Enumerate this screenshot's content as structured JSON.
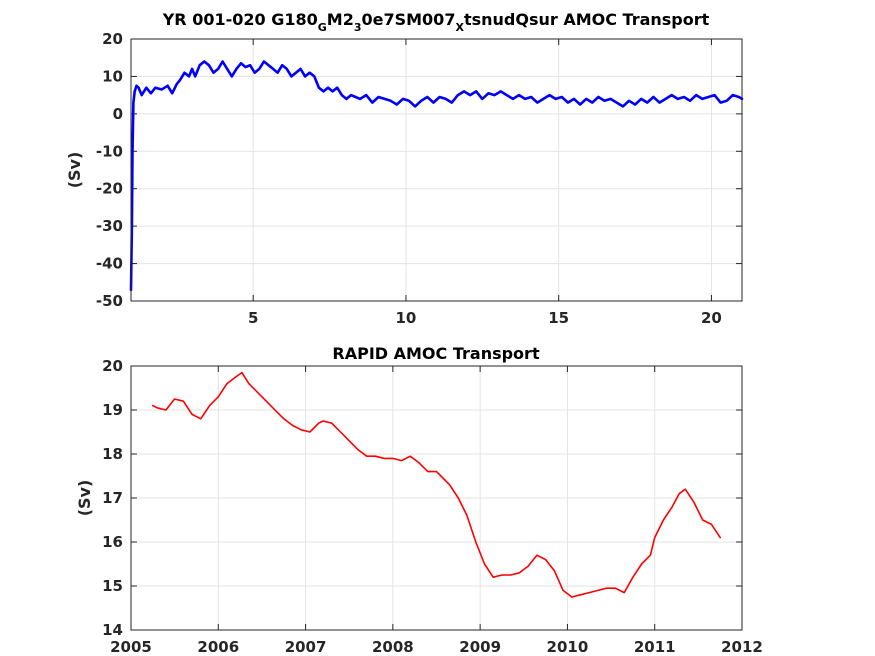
{
  "chart_data": [
    {
      "type": "line",
      "title_parts": [
        "YR 001-020 G180",
        "G",
        "M2",
        "3",
        "0e7SM007",
        "X",
        "tsnudQsur AMOC Transport"
      ],
      "ylabel": "(Sv)",
      "xlabel": "",
      "xlim": [
        1,
        21
      ],
      "ylim": [
        -50,
        20
      ],
      "xticks": [
        5,
        10,
        15,
        20
      ],
      "yticks": [
        20,
        10,
        0,
        -10,
        -20,
        -30,
        -40,
        -50
      ],
      "grid": true,
      "series": [
        {
          "color": "#0000ff",
          "x": [
            1.0,
            1.03,
            1.05,
            1.08,
            1.12,
            1.18,
            1.25,
            1.35,
            1.5,
            1.65,
            1.8,
            2.0,
            2.2,
            2.35,
            2.5,
            2.6,
            2.75,
            2.9,
            3.0,
            3.1,
            3.25,
            3.4,
            3.55,
            3.7,
            3.85,
            4.0,
            4.15,
            4.3,
            4.45,
            4.6,
            4.75,
            4.9,
            5.05,
            5.2,
            5.35,
            5.5,
            5.65,
            5.8,
            5.95,
            6.1,
            6.25,
            6.4,
            6.55,
            6.7,
            6.85,
            7.0,
            7.15,
            7.3,
            7.45,
            7.6,
            7.75,
            7.9,
            8.05,
            8.2,
            8.35,
            8.5,
            8.7,
            8.9,
            9.1,
            9.3,
            9.5,
            9.7,
            9.9,
            10.1,
            10.3,
            10.5,
            10.7,
            10.9,
            11.1,
            11.3,
            11.5,
            11.7,
            11.9,
            12.1,
            12.3,
            12.5,
            12.7,
            12.9,
            13.1,
            13.3,
            13.5,
            13.7,
            13.9,
            14.1,
            14.3,
            14.5,
            14.7,
            14.9,
            15.1,
            15.3,
            15.5,
            15.7,
            15.9,
            16.1,
            16.3,
            16.5,
            16.7,
            16.9,
            17.1,
            17.3,
            17.5,
            17.7,
            17.9,
            18.1,
            18.3,
            18.5,
            18.7,
            18.9,
            19.1,
            19.3,
            19.5,
            19.7,
            19.9,
            20.1,
            20.3,
            20.5,
            20.7,
            20.9,
            21.0
          ],
          "y": [
            -47,
            -30,
            -10,
            3,
            6,
            7.5,
            7,
            5,
            7,
            5.5,
            7,
            6.5,
            7.5,
            5.5,
            8,
            9,
            11,
            10,
            12,
            10,
            13,
            14,
            13,
            11,
            12,
            14,
            12,
            10,
            12,
            13.5,
            12.5,
            13,
            11,
            12,
            14,
            13,
            12,
            11,
            13,
            12,
            10,
            11,
            12,
            10,
            11,
            10,
            7,
            6,
            7,
            6,
            7,
            5,
            4,
            5,
            4.5,
            4,
            5,
            3,
            4.5,
            4,
            3.5,
            2.5,
            4,
            3.5,
            2,
            3.5,
            4.5,
            3,
            4.5,
            4,
            3,
            5,
            6,
            5,
            6,
            4,
            5.5,
            5,
            6,
            5,
            4,
            5,
            4,
            4.5,
            3,
            4,
            5,
            4,
            4.5,
            3,
            4,
            2.5,
            4,
            3,
            4.5,
            3.5,
            4,
            3,
            2,
            3.5,
            2.5,
            4,
            3,
            4.5,
            3,
            4,
            5,
            4,
            4.5,
            3.5,
            5,
            4,
            4.5,
            5,
            3,
            3.5,
            5,
            4.5,
            4
          ]
        }
      ]
    },
    {
      "type": "line",
      "title": "RAPID AMOC Transport",
      "ylabel": "(Sv)",
      "xlabel": "",
      "xlim": [
        2005,
        2012
      ],
      "ylim": [
        14,
        20
      ],
      "xticks": [
        2005,
        2006,
        2007,
        2008,
        2009,
        2010,
        2011,
        2012
      ],
      "yticks": [
        20,
        19,
        18,
        17,
        16,
        15,
        14
      ],
      "grid": true,
      "series": [
        {
          "color": "#ff0000",
          "x": [
            2005.25,
            2005.3,
            2005.4,
            2005.5,
            2005.6,
            2005.7,
            2005.8,
            2005.9,
            2006.0,
            2006.1,
            2006.2,
            2006.27,
            2006.35,
            2006.45,
            2006.55,
            2006.65,
            2006.75,
            2006.85,
            2006.95,
            2007.05,
            2007.15,
            2007.2,
            2007.3,
            2007.4,
            2007.5,
            2007.6,
            2007.7,
            2007.8,
            2007.9,
            2008.0,
            2008.1,
            2008.2,
            2008.3,
            2008.4,
            2008.5,
            2008.55,
            2008.65,
            2008.75,
            2008.85,
            2008.95,
            2009.05,
            2009.15,
            2009.25,
            2009.35,
            2009.45,
            2009.55,
            2009.65,
            2009.75,
            2009.85,
            2009.95,
            2010.05,
            2010.15,
            2010.25,
            2010.35,
            2010.45,
            2010.55,
            2010.65,
            2010.75,
            2010.85,
            2010.95,
            2011.0,
            2011.1,
            2011.2,
            2011.28,
            2011.35,
            2011.45,
            2011.55,
            2011.65,
            2011.75
          ],
          "y": [
            19.1,
            19.05,
            19.0,
            19.25,
            19.2,
            18.9,
            18.8,
            19.1,
            19.3,
            19.6,
            19.75,
            19.85,
            19.6,
            19.4,
            19.2,
            19.0,
            18.8,
            18.65,
            18.55,
            18.5,
            18.7,
            18.75,
            18.7,
            18.5,
            18.3,
            18.1,
            17.95,
            17.95,
            17.9,
            17.9,
            17.85,
            17.95,
            17.8,
            17.6,
            17.6,
            17.5,
            17.3,
            17.0,
            16.6,
            16.0,
            15.5,
            15.2,
            15.25,
            15.25,
            15.3,
            15.45,
            15.7,
            15.6,
            15.35,
            14.9,
            14.75,
            14.8,
            14.85,
            14.9,
            14.95,
            14.95,
            14.85,
            15.2,
            15.5,
            15.7,
            16.1,
            16.5,
            16.8,
            17.1,
            17.2,
            16.9,
            16.5,
            16.4,
            16.1
          ]
        }
      ]
    }
  ]
}
